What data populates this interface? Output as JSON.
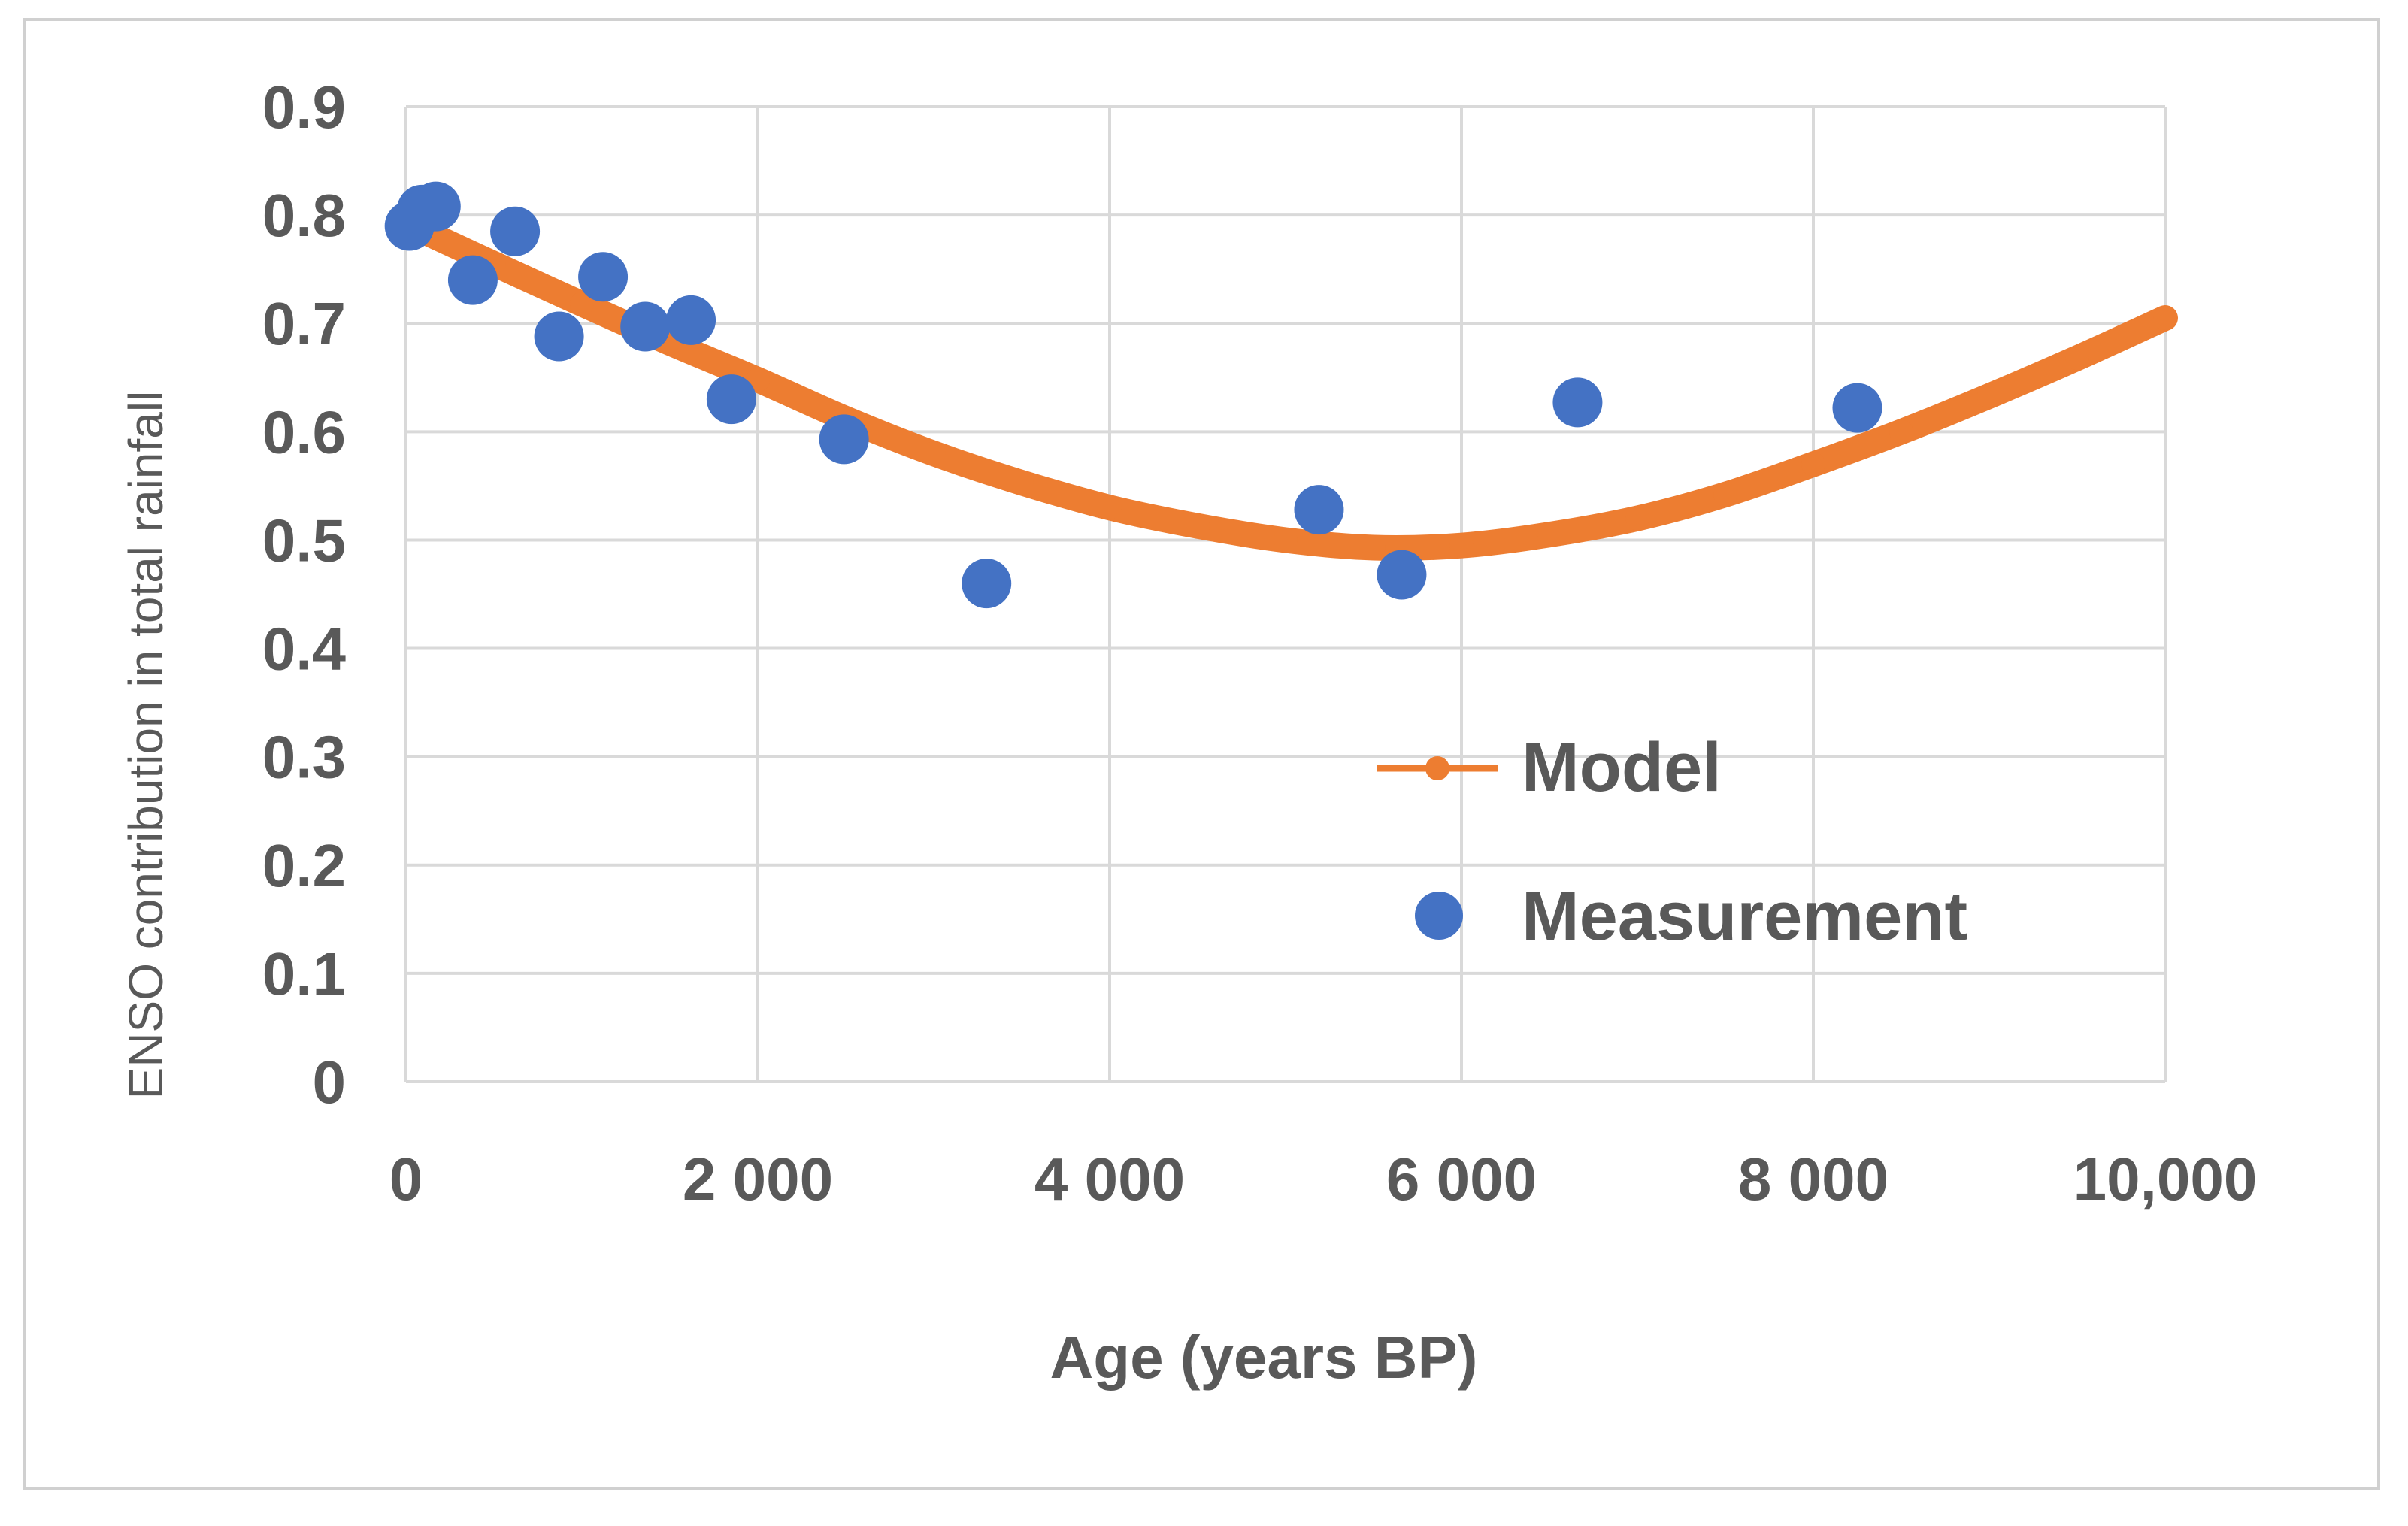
{
  "chart_data": {
    "type": "scatter",
    "title": "",
    "xlabel": "Age (years BP)",
    "ylabel": "ENSO contribution in total rainfall",
    "xlim": [
      0,
      10000
    ],
    "ylim": [
      0,
      0.9
    ],
    "grid": true,
    "x_ticks": [
      {
        "value": 0,
        "label": "0"
      },
      {
        "value": 2000,
        "label": "2 000"
      },
      {
        "value": 4000,
        "label": "4 000"
      },
      {
        "value": 6000,
        "label": "6 000"
      },
      {
        "value": 8000,
        "label": "8 000"
      },
      {
        "value": 10000,
        "label": "10,000"
      }
    ],
    "y_ticks": [
      {
        "value": 0,
        "label": "0"
      },
      {
        "value": 0.1,
        "label": "0.1"
      },
      {
        "value": 0.2,
        "label": "0.2"
      },
      {
        "value": 0.3,
        "label": "0.3"
      },
      {
        "value": 0.4,
        "label": "0.4"
      },
      {
        "value": 0.5,
        "label": "0.5"
      },
      {
        "value": 0.6,
        "label": "0.6"
      },
      {
        "value": 0.7,
        "label": "0.7"
      },
      {
        "value": 0.8,
        "label": "0.8"
      },
      {
        "value": 0.9,
        "label": "0.9"
      }
    ],
    "legend_position": "right-middle",
    "series": [
      {
        "name": "Model",
        "kind": "line",
        "color": "#ED7D31",
        "x": [
          100,
          500,
          1000,
          1500,
          2000,
          2500,
          3000,
          3500,
          4000,
          4500,
          5000,
          5500,
          6000,
          6500,
          7000,
          7500,
          8000,
          8500,
          9000,
          9500,
          10000
        ],
        "y": [
          0.785,
          0.755,
          0.718,
          0.682,
          0.648,
          0.612,
          0.58,
          0.553,
          0.53,
          0.513,
          0.5,
          0.493,
          0.495,
          0.505,
          0.52,
          0.542,
          0.57,
          0.6,
          0.633,
          0.668,
          0.705
        ]
      },
      {
        "name": "Measurement",
        "kind": "scatter",
        "color": "#4472C4",
        "x": [
          20,
          90,
          170,
          380,
          620,
          870,
          1120,
          1360,
          1620,
          1850,
          2490,
          3300,
          5190,
          5660,
          6660,
          8250
        ],
        "y": [
          0.79,
          0.805,
          0.808,
          0.74,
          0.785,
          0.688,
          0.743,
          0.697,
          0.703,
          0.63,
          0.593,
          0.46,
          0.528,
          0.468,
          0.627,
          0.622
        ]
      }
    ]
  }
}
